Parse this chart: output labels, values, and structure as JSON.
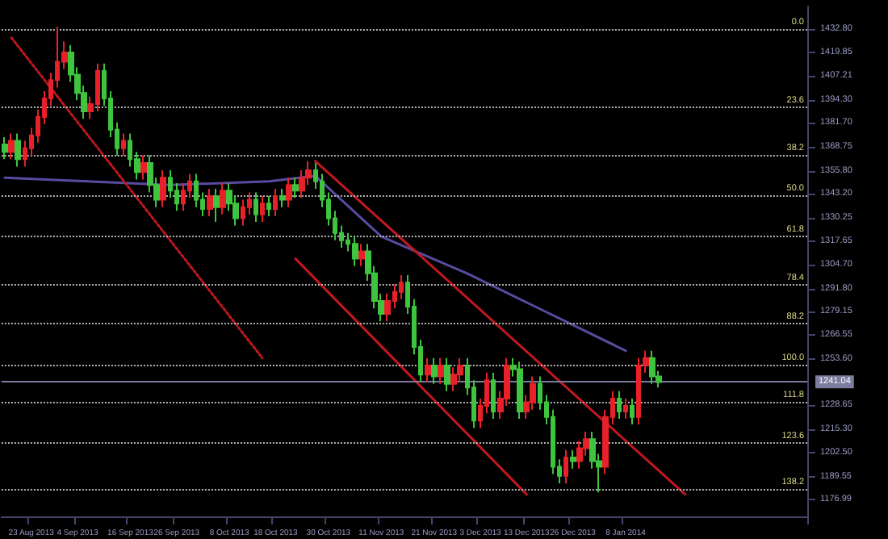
{
  "chart_data": {
    "type": "candlestick",
    "categories": [
      null,
      null,
      null,
      null,
      "23 Aug 2013",
      null,
      null,
      null,
      null,
      null,
      null,
      "4 Sep 2013",
      null,
      null,
      null,
      null,
      null,
      null,
      null,
      "16 Sep 2013",
      null,
      null,
      null,
      null,
      null,
      null,
      "26 Sep 2013",
      null,
      null,
      null,
      null,
      null,
      null,
      null,
      "8 Oct 2013",
      null,
      null,
      null,
      null,
      null,
      null,
      "18 Oct 2013",
      null,
      null,
      null,
      null,
      null,
      null,
      null,
      "30 Oct 2013",
      null,
      null,
      null,
      null,
      null,
      null,
      null,
      "11 Nov 2013",
      null,
      null,
      null,
      null,
      null,
      null,
      null,
      "21 Nov 2013",
      null,
      null,
      null,
      null,
      null,
      null,
      "3 Dec 2013",
      null,
      null,
      null,
      null,
      null,
      null,
      "13 Dec 2013",
      null,
      null,
      null,
      null,
      null,
      null,
      "26 Dec 2013",
      null,
      null,
      null,
      null,
      null,
      null,
      null,
      "8 Jan 2014",
      null,
      null,
      null,
      null,
      null,
      null,
      null,
      null,
      null,
      null,
      null,
      null,
      null,
      null,
      null,
      null,
      null,
      null,
      null,
      null,
      null,
      null,
      null,
      null,
      null,
      null,
      null
    ],
    "ohlc": [
      [
        1370,
        1374,
        1362,
        1366
      ],
      [
        1366,
        1376,
        1362,
        1372
      ],
      [
        1372,
        1376,
        1358,
        1362
      ],
      [
        1362,
        1372,
        1358,
        1368
      ],
      [
        1368,
        1379,
        1364,
        1375
      ],
      [
        1375,
        1389,
        1371,
        1385
      ],
      [
        1385,
        1399,
        1381,
        1395
      ],
      [
        1395,
        1409,
        1391,
        1405
      ],
      [
        1405,
        1434,
        1401,
        1415
      ],
      [
        1415,
        1426,
        1411,
        1420
      ],
      [
        1420,
        1424,
        1404,
        1408
      ],
      [
        1408,
        1412,
        1394,
        1398
      ],
      [
        1398,
        1402,
        1384,
        1388
      ],
      [
        1388,
        1396,
        1384,
        1392
      ],
      [
        1392,
        1414,
        1388,
        1410
      ],
      [
        1410,
        1414,
        1391,
        1395
      ],
      [
        1395,
        1399,
        1374,
        1378
      ],
      [
        1378,
        1382,
        1364,
        1368
      ],
      [
        1368,
        1376,
        1364,
        1372
      ],
      [
        1372,
        1376,
        1358,
        1362
      ],
      [
        1362,
        1366,
        1351,
        1355
      ],
      [
        1355,
        1364,
        1351,
        1360
      ],
      [
        1360,
        1364,
        1344,
        1348
      ],
      [
        1348,
        1352,
        1336,
        1340
      ],
      [
        1340,
        1356,
        1336,
        1352
      ],
      [
        1352,
        1356,
        1341,
        1345
      ],
      [
        1345,
        1349,
        1334,
        1338
      ],
      [
        1338,
        1349,
        1334,
        1345
      ],
      [
        1345,
        1354,
        1341,
        1350
      ],
      [
        1350,
        1354,
        1336,
        1340
      ],
      [
        1340,
        1344,
        1331,
        1335
      ],
      [
        1335,
        1346,
        1331,
        1342
      ],
      [
        1342,
        1346,
        1328,
        1336
      ],
      [
        1336,
        1349,
        1332,
        1345
      ],
      [
        1345,
        1349,
        1334,
        1338
      ],
      [
        1338,
        1342,
        1326,
        1330
      ],
      [
        1330,
        1340,
        1326,
        1336
      ],
      [
        1336,
        1344,
        1332,
        1340
      ],
      [
        1340,
        1344,
        1328,
        1332
      ],
      [
        1332,
        1342,
        1328,
        1338
      ],
      [
        1338,
        1342,
        1331,
        1335
      ],
      [
        1335,
        1346,
        1331,
        1342
      ],
      [
        1342,
        1346,
        1336,
        1340
      ],
      [
        1340,
        1352,
        1336,
        1348
      ],
      [
        1348,
        1352,
        1341,
        1345
      ],
      [
        1345,
        1356,
        1341,
        1352
      ],
      [
        1352,
        1361,
        1348,
        1356
      ],
      [
        1356,
        1360,
        1346,
        1350
      ],
      [
        1350,
        1354,
        1336,
        1340
      ],
      [
        1340,
        1344,
        1326,
        1330
      ],
      [
        1330,
        1334,
        1318,
        1322
      ],
      [
        1322,
        1326,
        1314,
        1318
      ],
      [
        1318,
        1322,
        1312,
        1316
      ],
      [
        1316,
        1320,
        1304,
        1308
      ],
      [
        1308,
        1316,
        1304,
        1312
      ],
      [
        1312,
        1316,
        1296,
        1300
      ],
      [
        1300,
        1304,
        1281,
        1285
      ],
      [
        1285,
        1289,
        1274,
        1278
      ],
      [
        1278,
        1289,
        1274,
        1285
      ],
      [
        1285,
        1294,
        1281,
        1290
      ],
      [
        1290,
        1299,
        1286,
        1295
      ],
      [
        1295,
        1299,
        1278,
        1282
      ],
      [
        1282,
        1286,
        1256,
        1260
      ],
      [
        1260,
        1264,
        1241,
        1245
      ],
      [
        1245,
        1254,
        1241,
        1250
      ],
      [
        1250,
        1254,
        1240,
        1244
      ],
      [
        1244,
        1254,
        1240,
        1250
      ],
      [
        1250,
        1254,
        1236,
        1240
      ],
      [
        1240,
        1249,
        1236,
        1245
      ],
      [
        1245,
        1254,
        1241,
        1250
      ],
      [
        1250,
        1254,
        1234,
        1238
      ],
      [
        1238,
        1242,
        1216,
        1220
      ],
      [
        1220,
        1232,
        1216,
        1228
      ],
      [
        1228,
        1246,
        1224,
        1242
      ],
      [
        1242,
        1246,
        1221,
        1225
      ],
      [
        1225,
        1236,
        1221,
        1232
      ],
      [
        1232,
        1254,
        1228,
        1250
      ],
      [
        1250,
        1254,
        1244,
        1248
      ],
      [
        1248,
        1252,
        1221,
        1225
      ],
      [
        1225,
        1234,
        1221,
        1230
      ],
      [
        1230,
        1244,
        1226,
        1240
      ],
      [
        1240,
        1244,
        1226,
        1230
      ],
      [
        1230,
        1234,
        1218,
        1222
      ],
      [
        1222,
        1226,
        1191,
        1195
      ],
      [
        1195,
        1199,
        1186,
        1190
      ],
      [
        1190,
        1204,
        1186,
        1200
      ],
      [
        1200,
        1204,
        1194,
        1198
      ],
      [
        1198,
        1209,
        1194,
        1205
      ],
      [
        1205,
        1214,
        1201,
        1210
      ],
      [
        1210,
        1214,
        1194,
        1198
      ],
      [
        1198,
        1202,
        1181,
        1195
      ],
      [
        1195,
        1226,
        1191,
        1222
      ],
      [
        1222,
        1236,
        1218,
        1232
      ],
      [
        1232,
        1236,
        1221,
        1225
      ],
      [
        1225,
        1232,
        1221,
        1228
      ],
      [
        1228,
        1232,
        1218,
        1222
      ],
      [
        1222,
        1254,
        1218,
        1250
      ],
      [
        1250,
        1258,
        1246,
        1254
      ],
      [
        1254,
        1258,
        1240,
        1244
      ],
      [
        1244,
        1247,
        1238,
        1241
      ],
      null,
      null,
      null,
      null,
      null,
      null,
      null,
      null,
      null,
      null,
      null,
      null,
      null,
      null,
      null,
      null,
      null,
      null,
      null,
      null,
      null,
      null
    ],
    "colors": [
      "#3ec43e",
      "#e8202a",
      "#3ec43e",
      "#e8202a",
      "#e8202a",
      "#e8202a",
      "#e8202a",
      "#e8202a",
      "#e8202a",
      "#e8202a",
      "#3ec43e",
      "#3ec43e",
      "#3ec43e",
      "#e8202a",
      "#e8202a",
      "#3ec43e",
      "#3ec43e",
      "#3ec43e",
      "#e8202a",
      "#3ec43e",
      "#3ec43e",
      "#e8202a",
      "#3ec43e",
      "#3ec43e",
      "#e8202a",
      "#3ec43e",
      "#3ec43e",
      "#e8202a",
      "#e8202a",
      "#3ec43e",
      "#3ec43e",
      "#e8202a",
      "#3ec43e",
      "#e8202a",
      "#3ec43e",
      "#3ec43e",
      "#e8202a",
      "#e8202a",
      "#3ec43e",
      "#e8202a",
      "#3ec43e",
      "#e8202a",
      "#3ec43e",
      "#e8202a",
      "#3ec43e",
      "#e8202a",
      "#e8202a",
      "#3ec43e",
      "#3ec43e",
      "#3ec43e",
      "#3ec43e",
      "#3ec43e",
      "#3ec43e",
      "#3ec43e",
      "#e8202a",
      "#3ec43e",
      "#3ec43e",
      "#3ec43e",
      "#e8202a",
      "#e8202a",
      "#e8202a",
      "#3ec43e",
      "#3ec43e",
      "#3ec43e",
      "#e8202a",
      "#3ec43e",
      "#e8202a",
      "#3ec43e",
      "#e8202a",
      "#e8202a",
      "#3ec43e",
      "#3ec43e",
      "#e8202a",
      "#e8202a",
      "#3ec43e",
      "#e8202a",
      "#e8202a",
      "#3ec43e",
      "#3ec43e",
      "#e8202a",
      "#e8202a",
      "#3ec43e",
      "#3ec43e",
      "#3ec43e",
      "#3ec43e",
      "#e8202a",
      "#3ec43e",
      "#e8202a",
      "#e8202a",
      "#3ec43e",
      "#3ec43e",
      "#e8202a",
      "#e8202a",
      "#3ec43e",
      "#e8202a",
      "#3ec43e",
      "#e8202a",
      "#e8202a",
      "#3ec43e",
      "#3ec43e",
      null,
      null,
      null,
      null,
      null,
      null,
      null,
      null,
      null,
      null,
      null,
      null,
      null,
      null,
      null,
      null,
      null,
      null,
      null,
      null,
      null,
      null
    ],
    "series": [
      {
        "type": "line",
        "color": "#5a4aa0",
        "line_style": "solid",
        "values": [
          1352,
          null,
          null,
          null,
          null,
          null,
          null,
          null,
          null,
          null,
          null,
          null,
          null,
          null,
          null,
          null,
          null,
          null,
          null,
          null,
          null,
          null,
          null,
          null,
          null,
          1348,
          null,
          null,
          null,
          null,
          null,
          null,
          null,
          null,
          null,
          null,
          null,
          null,
          null,
          null,
          1350,
          null,
          null,
          null,
          null,
          null,
          null,
          1353,
          null,
          null,
          null,
          null,
          null,
          null,
          null,
          null,
          null,
          1320,
          null,
          null,
          null,
          null,
          null,
          null,
          null,
          null,
          null,
          null,
          null,
          null,
          1300,
          null,
          null,
          null,
          null,
          null,
          null,
          null,
          null,
          null,
          null,
          null,
          1279,
          null,
          null,
          null,
          null,
          null,
          null,
          null,
          null,
          null,
          null,
          null,
          1258,
          null,
          null,
          null,
          null,
          null,
          null,
          null,
          null,
          null,
          null,
          null,
          null,
          null,
          null,
          null,
          null,
          null,
          null,
          null,
          null,
          null,
          null,
          null,
          null,
          null,
          null,
          null
        ]
      },
      {
        "type": "line",
        "color": "#c0181e",
        "line_style": "solid",
        "values": [
          null,
          null,
          null,
          null,
          null,
          null,
          null,
          null,
          null,
          null,
          null,
          null,
          null,
          null,
          null,
          null,
          null,
          null,
          null,
          null,
          null,
          null,
          null,
          null,
          null,
          null,
          null,
          null,
          null,
          null,
          null,
          null,
          null,
          null,
          null,
          null,
          null,
          null,
          null,
          null,
          null,
          null,
          null,
          null,
          null,
          null,
          null,
          1361,
          null,
          null,
          null,
          null,
          null,
          null,
          null,
          null,
          null,
          null,
          null,
          null,
          null,
          null,
          null,
          null,
          null,
          null,
          null,
          null,
          null,
          null,
          null,
          null,
          null,
          null,
          null,
          null,
          null,
          null,
          null,
          null,
          null,
          null,
          null,
          null,
          null,
          null,
          null,
          null,
          null,
          null,
          null,
          null,
          null,
          null,
          null,
          null,
          null,
          null,
          null,
          null,
          null,
          null,
          null,
          1180,
          null,
          null,
          null,
          null,
          null,
          null,
          null,
          null,
          null,
          null,
          null,
          null,
          null,
          null,
          null,
          null,
          null,
          null
        ]
      },
      {
        "type": "line",
        "color": "#c0181e",
        "line_style": "solid",
        "values": [
          null,
          null,
          null,
          null,
          null,
          null,
          null,
          null,
          null,
          null,
          null,
          null,
          null,
          null,
          null,
          null,
          null,
          null,
          null,
          null,
          null,
          null,
          null,
          null,
          null,
          null,
          null,
          null,
          null,
          null,
          null,
          null,
          null,
          null,
          null,
          null,
          null,
          null,
          null,
          null,
          null,
          null,
          null,
          null,
          1308,
          null,
          null,
          null,
          null,
          null,
          null,
          null,
          null,
          null,
          null,
          null,
          null,
          null,
          null,
          null,
          null,
          null,
          null,
          null,
          null,
          null,
          null,
          null,
          null,
          null,
          null,
          null,
          null,
          null,
          null,
          null,
          null,
          null,
          null,
          1180,
          null,
          null,
          null,
          null,
          null,
          null,
          null,
          null,
          null,
          null,
          null,
          null,
          null,
          null,
          null,
          null,
          null,
          null,
          null,
          null,
          null,
          null,
          null,
          null,
          null,
          null,
          null,
          null,
          null,
          null,
          null,
          null,
          null,
          null,
          null,
          null,
          null,
          null,
          null,
          null,
          null,
          null
        ]
      },
      {
        "type": "line",
        "color": "#c0181e",
        "line_style": "dotted",
        "values": [
          null,
          1428,
          null,
          null,
          null,
          null,
          null,
          null,
          null,
          null,
          null,
          null,
          null,
          null,
          null,
          null,
          null,
          null,
          null,
          null,
          null,
          null,
          null,
          null,
          null,
          null,
          null,
          null,
          null,
          null,
          null,
          null,
          null,
          null,
          null,
          null,
          null,
          null,
          null,
          1254,
          null,
          null,
          null,
          null,
          null,
          null,
          null,
          null,
          null,
          null,
          null,
          null,
          null,
          null,
          null,
          null,
          null,
          null,
          null,
          null,
          null,
          null,
          null,
          null,
          null,
          null,
          null,
          null,
          null,
          null,
          null,
          null,
          null,
          null,
          null,
          null,
          null,
          null,
          null,
          null,
          null,
          null,
          null,
          null,
          null,
          null,
          null,
          null,
          null,
          null,
          null,
          null,
          null,
          null,
          null,
          null,
          null,
          null,
          null,
          null,
          null,
          null,
          null,
          null,
          null,
          null,
          null,
          null,
          null,
          null,
          null,
          null,
          null,
          null,
          null,
          null,
          null,
          null,
          null,
          null,
          null,
          null
        ]
      }
    ],
    "ylim": [
      1168,
      1445
    ],
    "yticks": [
      {
        "value": 1432.8,
        "label": "1432.80"
      },
      {
        "value": 1419.85,
        "label": "1419.85"
      },
      {
        "value": 1407.21,
        "label": "1407.21"
      },
      {
        "value": 1394.3,
        "label": "1394.30"
      },
      {
        "value": 1381.7,
        "label": "1381.70"
      },
      {
        "value": 1368.75,
        "label": "1368.75"
      },
      {
        "value": 1355.8,
        "label": "1355.80"
      },
      {
        "value": 1343.2,
        "label": "1343.20"
      },
      {
        "value": 1330.25,
        "label": "1330.25"
      },
      {
        "value": 1317.65,
        "label": "1317.65"
      },
      {
        "value": 1304.7,
        "label": "1304.70"
      },
      {
        "value": 1291.8,
        "label": "1291.80"
      },
      {
        "value": 1279.15,
        "label": "1279.15"
      },
      {
        "value": 1266.55,
        "label": "1266.55"
      },
      {
        "value": 1253.6,
        "label": "1253.60"
      },
      {
        "value": 1228.65,
        "label": "1228.65"
      },
      {
        "value": 1215.3,
        "label": "1215.30"
      },
      {
        "value": 1202.5,
        "label": "1202.50"
      },
      {
        "value": 1189.55,
        "label": "1189.55"
      },
      {
        "value": 1176.99,
        "label": "1176.99"
      }
    ],
    "ref_lines": [
      {
        "axis": "y",
        "value": 1432.8,
        "color": "#b4b4b4",
        "line_style": "dotted"
      },
      {
        "axis": "y",
        "value": 1390.3,
        "color": "#b4b4b4",
        "line_style": "dotted"
      },
      {
        "axis": "y",
        "value": 1364.3,
        "color": "#b4b4b4",
        "line_style": "dotted"
      },
      {
        "axis": "y",
        "value": 1342.6,
        "color": "#b4b4b4",
        "line_style": "dotted"
      },
      {
        "axis": "y",
        "value": 1320.3,
        "color": "#b4b4b4",
        "line_style": "dotted"
      },
      {
        "axis": "y",
        "value": 1293.6,
        "color": "#b4b4b4",
        "line_style": "dotted"
      },
      {
        "axis": "y",
        "value": 1272.8,
        "color": "#b4b4b4",
        "line_style": "dotted"
      },
      {
        "axis": "y",
        "value": 1250.3,
        "color": "#b4b4b4",
        "line_style": "dotted"
      },
      {
        "axis": "y",
        "value": 1230.3,
        "color": "#b4b4b4",
        "line_style": "dotted"
      },
      {
        "axis": "y",
        "value": 1207.8,
        "color": "#b4b4b4",
        "line_style": "dotted"
      },
      {
        "axis": "y",
        "value": 1182.8,
        "color": "#b4b4b4",
        "line_style": "dotted"
      },
      {
        "axis": "y",
        "value": 1241.04,
        "label": "1241.04",
        "color": "#7c7ca0",
        "line_style": "solid"
      }
    ],
    "annotations": [
      {
        "text": "0.0",
        "y": 1432.8
      },
      {
        "text": "23.6",
        "y": 1390.3
      },
      {
        "text": "38.2",
        "y": 1364.3
      },
      {
        "text": "50.0",
        "y": 1342.6
      },
      {
        "text": "61.8",
        "y": 1320.3
      },
      {
        "text": "78.4",
        "y": 1293.6
      },
      {
        "text": "88.2",
        "y": 1272.8
      },
      {
        "text": "100.0",
        "y": 1250.3
      },
      {
        "text": "111.8",
        "y": 1230.3
      },
      {
        "text": "123.6",
        "y": 1207.8
      },
      {
        "text": "138.2",
        "y": 1182.8
      }
    ],
    "grid": false
  }
}
